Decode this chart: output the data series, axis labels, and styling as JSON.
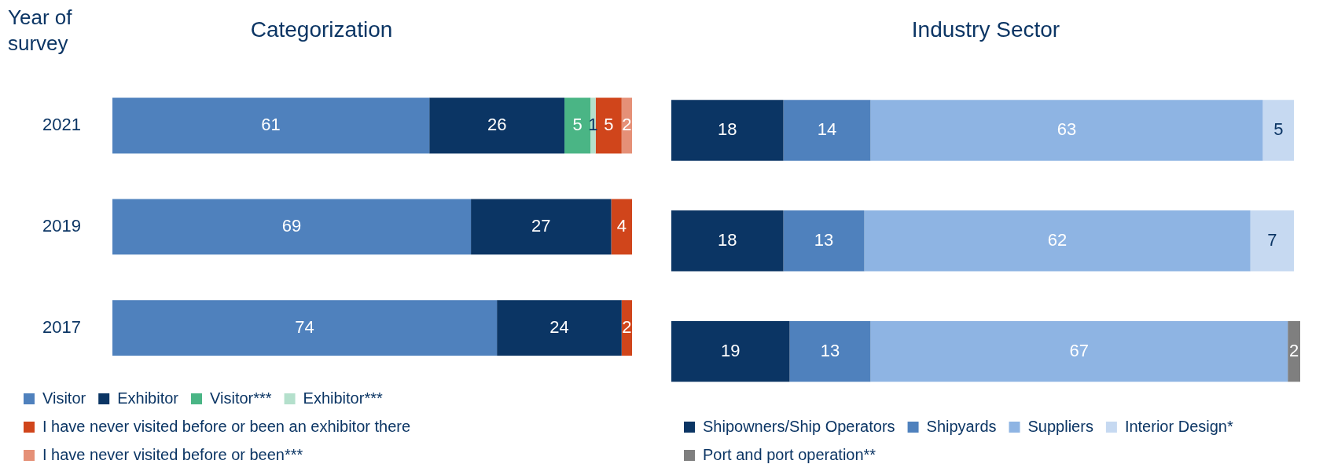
{
  "chart_data": [
    {
      "type": "bar",
      "title": "Categorization",
      "ylabel": "Year of survey",
      "orientation": "horizontal",
      "stacked": true,
      "data_labels": true,
      "legend": "bottom",
      "tick_labels": "y",
      "categories": [
        "2021",
        "2019",
        "2017"
      ],
      "series": [
        {
          "name": "Visitor",
          "color": "#4f81bd",
          "values": [
            61,
            69,
            74
          ]
        },
        {
          "name": "Exhibitor",
          "color": "#0b3564",
          "values": [
            26,
            27,
            24
          ]
        },
        {
          "name": "Visitor***",
          "color": "#4ab585",
          "values": [
            5,
            null,
            null
          ]
        },
        {
          "name": "Exhibitor***",
          "color": "#b4e0cc",
          "values": [
            1,
            null,
            null
          ]
        },
        {
          "name": "I have never visited before or been an exhibitor there",
          "color": "#d0451b",
          "values": [
            5,
            4,
            2
          ]
        },
        {
          "name": "I have never visited before or been***",
          "color": "#e59077",
          "values": [
            2,
            null,
            null
          ]
        }
      ]
    },
    {
      "type": "bar",
      "title": "Industry Sector",
      "orientation": "horizontal",
      "stacked": true,
      "data_labels": true,
      "legend": "bottom",
      "tick_labels": false,
      "categories": [
        "2021",
        "2019",
        "2017"
      ],
      "series": [
        {
          "name": "Shipowners/Ship Operators",
          "color": "#0b3564",
          "values": [
            18,
            18,
            19
          ]
        },
        {
          "name": "Shipyards",
          "color": "#4f81bd",
          "values": [
            14,
            13,
            13
          ]
        },
        {
          "name": "Suppliers",
          "color": "#8eb4e3",
          "values": [
            63,
            62,
            67
          ]
        },
        {
          "name": "Interior Design*",
          "color": "#c6d9f1",
          "values": [
            5,
            7,
            null
          ]
        },
        {
          "name": "Port and port operation**",
          "color": "#7f7f7f",
          "values": [
            null,
            null,
            2
          ]
        }
      ]
    }
  ]
}
